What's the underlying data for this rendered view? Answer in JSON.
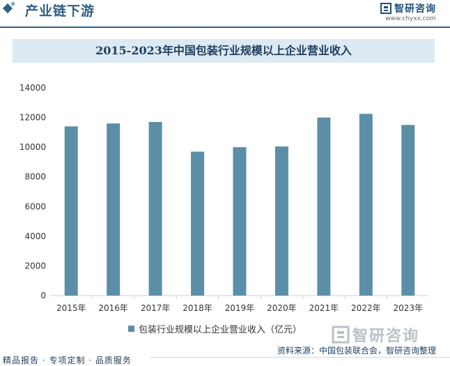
{
  "header": {
    "section_title": "产业链下游",
    "brand_name": "智研咨询",
    "brand_url": "www.chyxx.com"
  },
  "colors": {
    "bar": "#5b8fa8",
    "title_bg": "#dde9f3",
    "accent": "#2f5f86"
  },
  "chart_data": {
    "type": "bar",
    "title": "2015-2023年中国包装行业规模以上企业营业收入",
    "categories": [
      "2015年",
      "2016年",
      "2017年",
      "2018年",
      "2019年",
      "2020年",
      "2021年",
      "2022年",
      "2023年"
    ],
    "series": [
      {
        "name": "包装行业规模以上企业营业收入（亿元）",
        "values": [
          11400,
          11600,
          11700,
          9700,
          10000,
          10050,
          12000,
          12250,
          11500
        ]
      }
    ],
    "yticks": [
      0,
      2000,
      4000,
      6000,
      8000,
      10000,
      12000,
      14000
    ],
    "ylim": [
      0,
      14000
    ],
    "xlabel": "",
    "ylabel": "",
    "grid": false,
    "legend_position": "bottom"
  },
  "watermark": {
    "name": "智研咨询"
  },
  "source": "资料来源：中国包装联合会，智研咨询整理",
  "footer": {
    "text": "精品报告 · 专项定制 · 品质服务"
  }
}
